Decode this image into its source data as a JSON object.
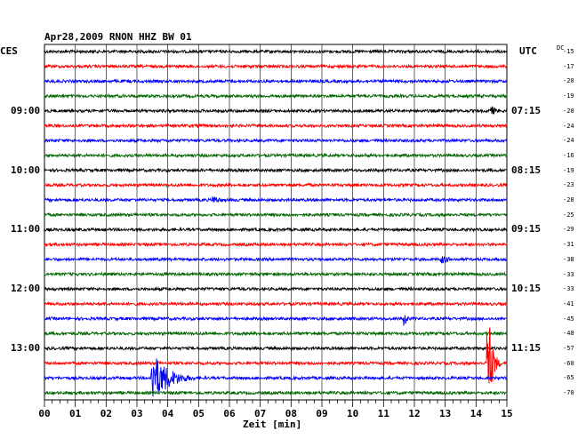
{
  "chart_data": {
    "type": "line",
    "title": "Apr28,2009   RNON HHZ BW 01",
    "left_zone_label": "CES",
    "right_zone_label": "UTC",
    "dc_label": "DC",
    "xlabel": "Zeit [min]",
    "xlim": [
      0,
      15
    ],
    "x_ticks": [
      "00",
      "01",
      "02",
      "03",
      "04",
      "05",
      "06",
      "07",
      "08",
      "09",
      "10",
      "11",
      "12",
      "13",
      "14",
      "15"
    ],
    "rows_per_hour": 4,
    "row_interval_min": 15,
    "series_colors": [
      "#000000",
      "#ff0000",
      "#0000ff",
      "#006400"
    ],
    "left_hour_labels": [
      {
        "row": 4,
        "label": "09:00"
      },
      {
        "row": 8,
        "label": "10:00"
      },
      {
        "row": 12,
        "label": "11:00"
      },
      {
        "row": 16,
        "label": "12:00"
      },
      {
        "row": 20,
        "label": "13:00"
      }
    ],
    "right_hour_labels": [
      {
        "row": 4,
        "label": "07:15"
      },
      {
        "row": 8,
        "label": "08:15"
      },
      {
        "row": 12,
        "label": "09:15"
      },
      {
        "row": 16,
        "label": "10:15"
      },
      {
        "row": 20,
        "label": "11:15"
      }
    ],
    "dc_offsets": [
      -15,
      -17,
      -20,
      -19,
      -20,
      -24,
      -24,
      -16,
      -19,
      -23,
      -28,
      -25,
      -29,
      -31,
      -38,
      -33,
      -33,
      -41,
      -45,
      -48,
      -57,
      -60,
      -65,
      -70
    ],
    "events": [
      {
        "row": 0,
        "minute": 2.9,
        "amplitude": 3,
        "duration": 0.3
      },
      {
        "row": 4,
        "minute": 14.5,
        "amplitude": 6,
        "duration": 0.6
      },
      {
        "row": 5,
        "minute": 5.0,
        "amplitude": 2.5,
        "duration": 0.3
      },
      {
        "row": 7,
        "minute": 10.4,
        "amplitude": 3,
        "duration": 0.3
      },
      {
        "row": 9,
        "minute": 8.6,
        "amplitude": 2.5,
        "duration": 0.4
      },
      {
        "row": 10,
        "minute": 5.5,
        "amplitude": 5,
        "duration": 0.8
      },
      {
        "row": 14,
        "minute": 12.9,
        "amplitude": 5,
        "duration": 0.9
      },
      {
        "row": 18,
        "minute": 11.7,
        "amplitude": 9,
        "duration": 0.25
      },
      {
        "row": 21,
        "minute": 14.4,
        "amplitude": 60,
        "duration": 0.4
      },
      {
        "row": 22,
        "minute": 3.5,
        "amplitude": 30,
        "duration": 1.6
      }
    ]
  }
}
